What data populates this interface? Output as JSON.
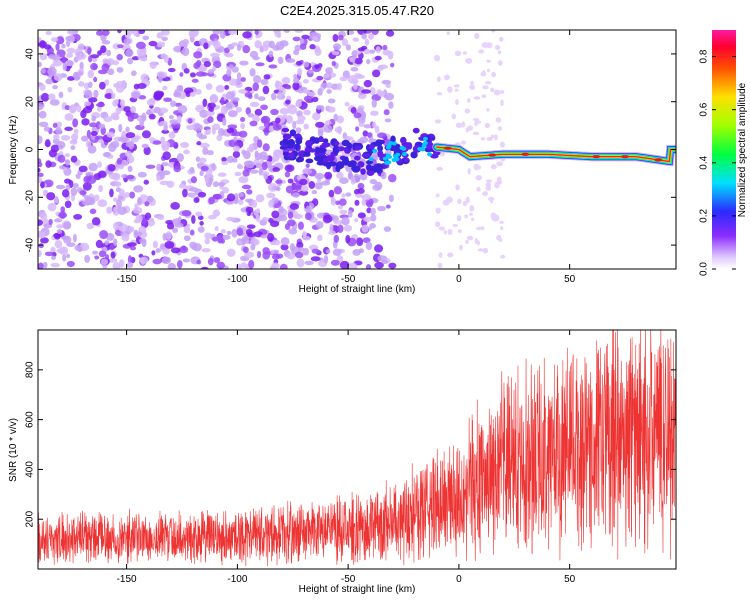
{
  "title": "C2E4.2025.315.05.47.R20",
  "chart_data": [
    {
      "type": "heatmap",
      "xlabel": "Height of straight line (km)",
      "ylabel": "Frequency (Hz)",
      "xlim": [
        -190,
        98
      ],
      "ylim": [
        -50,
        50
      ],
      "xticks": [
        -150,
        -100,
        -50,
        0,
        50
      ],
      "xtick_labels": [
        "-150",
        "-100",
        "-50",
        "0",
        "50"
      ],
      "yticks": [
        -40,
        -20,
        0,
        20,
        40
      ],
      "ytick_labels": [
        "-40",
        "-20",
        "0",
        "20",
        "40"
      ],
      "colorbar": {
        "label": "Normalized spectral amplitude",
        "range": [
          0,
          0.9
        ],
        "ticks": [
          0,
          0.2,
          0.4,
          0.6,
          0.8
        ],
        "tick_labels": [
          "0.0",
          "0.2",
          "0.4",
          "0.6",
          "0.8"
        ]
      },
      "ridge": {
        "description_points": [
          {
            "x": -80,
            "y": 3
          },
          {
            "x": -60,
            "y": -2
          },
          {
            "x": -40,
            "y": -4
          },
          {
            "x": -20,
            "y": 2
          },
          {
            "x": -10,
            "y": 1
          },
          {
            "x": 0,
            "y": 0
          },
          {
            "x": 5,
            "y": -3
          },
          {
            "x": 20,
            "y": -2
          },
          {
            "x": 40,
            "y": -2
          },
          {
            "x": 60,
            "y": -3
          },
          {
            "x": 80,
            "y": -3
          },
          {
            "x": 95,
            "y": -5
          }
        ]
      },
      "colors": {
        "low": "#e7d3fb",
        "mid": "#7a1cf0",
        "ridge_core": "#ff2020",
        "ridge_edge": "#2040ff"
      }
    },
    {
      "type": "line",
      "xlabel": "Height of straight line (km)",
      "ylabel": "SNR (10 * v/v)",
      "xlim": [
        -190,
        98
      ],
      "ylim": [
        0,
        960
      ],
      "xticks": [
        -150,
        -100,
        -50,
        0,
        50
      ],
      "xtick_labels": [
        "-150",
        "-100",
        "-50",
        "0",
        "50"
      ],
      "yticks": [
        200,
        400,
        600,
        800
      ],
      "ytick_labels": [
        "200",
        "400",
        "600",
        "800"
      ],
      "series": [
        {
          "name": "SNR",
          "color": "#ee3333",
          "trend": [
            {
              "x": -190,
              "y": 120
            },
            {
              "x": -150,
              "y": 125
            },
            {
              "x": -100,
              "y": 130
            },
            {
              "x": -60,
              "y": 150
            },
            {
              "x": -40,
              "y": 165
            },
            {
              "x": -20,
              "y": 230
            },
            {
              "x": 0,
              "y": 300
            },
            {
              "x": 20,
              "y": 420
            },
            {
              "x": 40,
              "y": 470
            },
            {
              "x": 60,
              "y": 510
            },
            {
              "x": 80,
              "y": 540
            },
            {
              "x": 98,
              "y": 560
            }
          ]
        }
      ]
    }
  ]
}
